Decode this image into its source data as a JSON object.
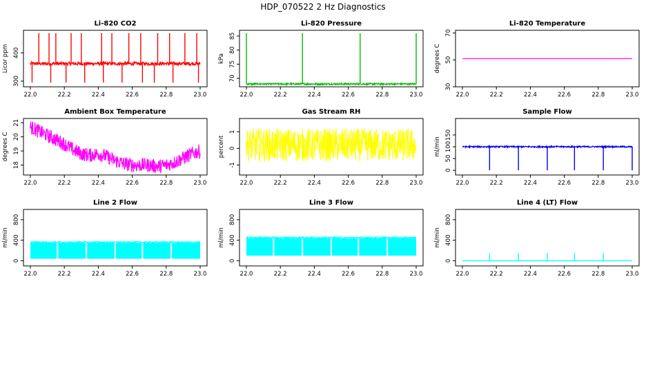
{
  "title": "HDP_070522  2 Hz Diagnostics",
  "chart_data": [
    {
      "type": "line",
      "title": "Li-820 CO2",
      "ylabel": "Licor ppm",
      "color": "#ff0000",
      "xlim": [
        22.0,
        23.0
      ],
      "ylim": [
        280,
        480
      ],
      "x_ticks": [
        22.0,
        22.2,
        22.4,
        22.6,
        22.8,
        23.0
      ],
      "y_ticks": [
        300,
        400
      ],
      "baseline": 362,
      "noise": 6,
      "spikes_up": [
        22.05,
        22.11,
        22.15,
        22.24,
        22.3,
        22.42,
        22.48,
        22.58,
        22.65,
        22.75,
        22.82,
        22.91,
        22.98
      ],
      "spike_up_value": 470,
      "spikes_down": [
        22.01,
        22.12,
        22.21,
        22.32,
        22.43,
        22.54,
        22.66,
        22.73,
        22.84,
        22.99
      ],
      "spike_down_value": 295
    },
    {
      "type": "line",
      "title": "Li-820 Pressure",
      "ylabel": "kPa",
      "color": "#00bb00",
      "xlim": [
        22.0,
        23.0
      ],
      "ylim": [
        67,
        87
      ],
      "x_ticks": [
        22.0,
        22.2,
        22.4,
        22.6,
        22.8,
        23.0
      ],
      "y_ticks": [
        70,
        75,
        80,
        85
      ],
      "baseline": 68,
      "noise": 0.3,
      "spikes_up": [
        22.0,
        22.33,
        22.67,
        23.0
      ],
      "spike_up_value": 86
    },
    {
      "type": "line",
      "title": "Li-820 Temperature",
      "ylabel": "degrees C",
      "color": "#ff00ff",
      "xlim": [
        22.0,
        23.0
      ],
      "ylim": [
        30,
        72
      ],
      "x_ticks": [
        22.0,
        22.2,
        22.4,
        22.6,
        22.8,
        23.0
      ],
      "y_ticks": [
        30,
        50,
        70
      ],
      "baseline": 51,
      "noise": 0
    },
    {
      "type": "line",
      "title": "Ambient Box Temperature",
      "ylabel": "degrees C",
      "color": "#ff00ff",
      "xlim": [
        22.0,
        23.0
      ],
      "ylim": [
        17.3,
        21.3
      ],
      "x_ticks": [
        22.0,
        22.2,
        22.4,
        22.6,
        22.8,
        23.0
      ],
      "y_ticks": [
        18,
        19,
        20,
        21
      ],
      "trend_x": [
        22.0,
        22.05,
        22.1,
        22.15,
        22.2,
        22.25,
        22.3,
        22.35,
        22.4,
        22.45,
        22.5,
        22.55,
        22.6,
        22.65,
        22.7,
        22.75,
        22.8,
        22.85,
        22.9,
        22.95,
        23.0
      ],
      "trend_y": [
        20.7,
        20.4,
        20.1,
        19.8,
        19.5,
        19.1,
        18.8,
        18.7,
        18.8,
        18.6,
        18.3,
        18.1,
        18.0,
        18.0,
        18.0,
        17.9,
        18.0,
        18.2,
        18.5,
        18.8,
        19.0
      ],
      "noise": 0.5
    },
    {
      "type": "line",
      "title": "Gas Stream RH",
      "ylabel": "percent",
      "color": "#ffff00",
      "xlim": [
        22.0,
        23.0
      ],
      "ylim": [
        -1.6,
        1.8
      ],
      "x_ticks": [
        22.0,
        22.2,
        22.4,
        22.6,
        22.8,
        23.0
      ],
      "y_ticks": [
        -1,
        0,
        1
      ],
      "baseline": 0.2,
      "noise": 1.0
    },
    {
      "type": "line",
      "title": "Sample Flow",
      "ylabel": "ml/min",
      "color": "#0000ee",
      "xlim": [
        22.0,
        23.0
      ],
      "ylim": [
        -20,
        220
      ],
      "x_ticks": [
        22.0,
        22.2,
        22.4,
        22.6,
        22.8,
        23.0
      ],
      "y_ticks": [
        0,
        50,
        100,
        150
      ],
      "baseline": 100,
      "noise": 3,
      "spikes_down": [
        22.16,
        22.33,
        22.5,
        22.66,
        22.83,
        23.0
      ],
      "spike_down_value": 0
    },
    {
      "type": "area",
      "title": "Line 2 Flow",
      "ylabel": "ml/min",
      "color": "#00ffff",
      "xlim": [
        22.0,
        23.0
      ],
      "ylim": [
        -100,
        1000
      ],
      "x_ticks": [
        22.0,
        22.2,
        22.4,
        22.6,
        22.8,
        23.0
      ],
      "y_ticks": [
        0,
        400,
        800
      ],
      "band": [
        40,
        350
      ],
      "gaps": [
        22.16,
        22.33,
        22.5,
        22.66,
        22.83
      ]
    },
    {
      "type": "area",
      "title": "Line 3 Flow",
      "ylabel": "ml/min",
      "color": "#00ffff",
      "xlim": [
        22.0,
        23.0
      ],
      "ylim": [
        -100,
        1000
      ],
      "x_ticks": [
        22.0,
        22.2,
        22.4,
        22.6,
        22.8,
        23.0
      ],
      "y_ticks": [
        0,
        400,
        800
      ],
      "band": [
        100,
        440
      ],
      "gaps": [
        22.16,
        22.33,
        22.5,
        22.66,
        22.83
      ]
    },
    {
      "type": "line",
      "title": "Line 4 (LT) Flow",
      "ylabel": "ml/min",
      "color": "#00ffff",
      "xlim": [
        22.0,
        23.0
      ],
      "ylim": [
        -100,
        1000
      ],
      "x_ticks": [
        22.0,
        22.2,
        22.4,
        22.6,
        22.8,
        23.0
      ],
      "y_ticks": [
        0,
        400,
        800
      ],
      "baseline": 0,
      "noise": 2,
      "spikes_up": [
        22.16,
        22.33,
        22.5,
        22.66,
        22.83
      ],
      "spike_up_value": 150
    }
  ]
}
